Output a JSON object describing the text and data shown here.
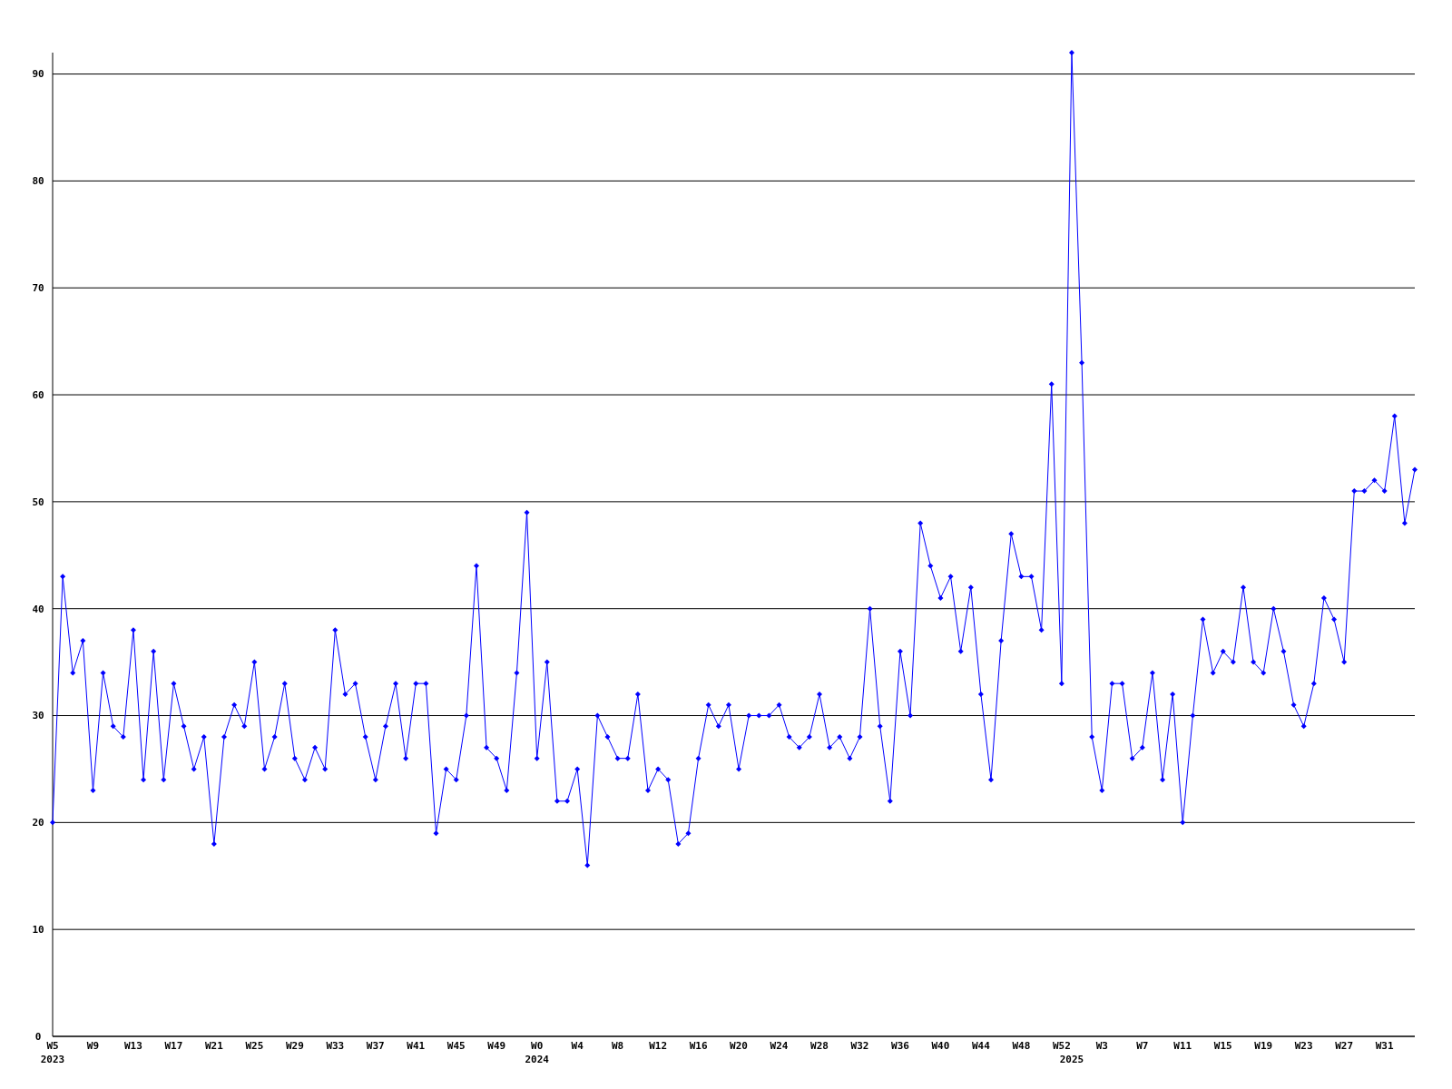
{
  "chart_data": {
    "type": "line",
    "categories": [
      "W5\n2023",
      null,
      null,
      null,
      "W9",
      null,
      null,
      null,
      "W13",
      null,
      null,
      null,
      "W17",
      null,
      null,
      null,
      "W21",
      null,
      null,
      null,
      "W25",
      null,
      null,
      null,
      "W29",
      null,
      null,
      null,
      "W33",
      null,
      null,
      null,
      "W37",
      null,
      null,
      null,
      "W41",
      null,
      null,
      null,
      "W45",
      null,
      null,
      null,
      "W49",
      null,
      null,
      null,
      "W0\n2024",
      null,
      null,
      null,
      "W4",
      null,
      null,
      null,
      "W8",
      null,
      null,
      null,
      "W12",
      null,
      null,
      null,
      "W16",
      null,
      null,
      null,
      "W20",
      null,
      null,
      null,
      "W24",
      null,
      null,
      null,
      "W28",
      null,
      null,
      null,
      "W32",
      null,
      null,
      null,
      "W36",
      null,
      null,
      null,
      "W40",
      null,
      null,
      null,
      "W44",
      null,
      null,
      null,
      "W48",
      null,
      null,
      null,
      "W52",
      "\n2025",
      null,
      null,
      "W3",
      null,
      null,
      null,
      "W7",
      null,
      null,
      null,
      "W11",
      null,
      null,
      null,
      "W15",
      null,
      null,
      null,
      "W19",
      null,
      null,
      null,
      "W23",
      null,
      null,
      null,
      "W27",
      null,
      null,
      null,
      "W31",
      null,
      null,
      null
    ],
    "series": [
      {
        "color": "#0000ff",
        "values": [
          20,
          43,
          34,
          37,
          23,
          34,
          29,
          28,
          38,
          24,
          36,
          24,
          33,
          29,
          25,
          28,
          18,
          28,
          31,
          29,
          35,
          25,
          28,
          33,
          26,
          24,
          27,
          25,
          38,
          32,
          33,
          28,
          24,
          29,
          33,
          26,
          33,
          33,
          19,
          25,
          24,
          30,
          44,
          27,
          26,
          23,
          34,
          49,
          26,
          35,
          22,
          22,
          25,
          16,
          30,
          28,
          26,
          26,
          32,
          23,
          25,
          24,
          18,
          19,
          26,
          31,
          29,
          31,
          25,
          30,
          30,
          30,
          31,
          28,
          27,
          28,
          32,
          27,
          28,
          26,
          28,
          40,
          29,
          22,
          36,
          30,
          48,
          44,
          41,
          43,
          36,
          42,
          32,
          24,
          37,
          47,
          43,
          43,
          38,
          61,
          33,
          92,
          63,
          28,
          23,
          33,
          33,
          26,
          27,
          34,
          24,
          32,
          20,
          30,
          39,
          34,
          36,
          35,
          42,
          35,
          34,
          40,
          36,
          31,
          29,
          33,
          41,
          39,
          35,
          51,
          51,
          52,
          51,
          58,
          48,
          53
        ]
      }
    ],
    "ylim": [
      0,
      92
    ],
    "yticks": [
      0,
      10,
      20,
      30,
      40,
      50,
      60,
      70,
      80,
      90
    ],
    "grid": "y",
    "marker": "diamond",
    "line_style": "solid"
  }
}
